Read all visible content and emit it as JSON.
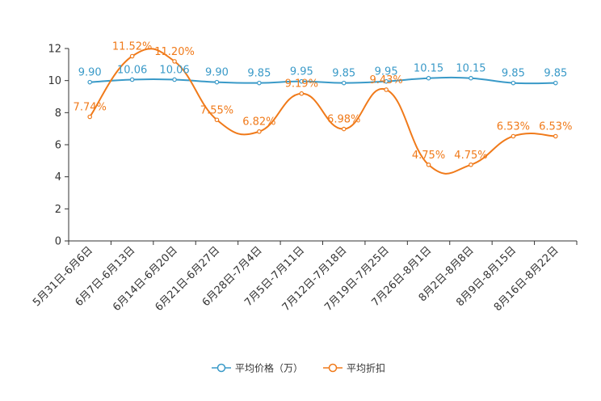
{
  "chart_data": {
    "type": "line",
    "title": "",
    "xlabel": "",
    "ylabel": "",
    "ylim": [
      0,
      12
    ],
    "yticks": [
      0,
      2,
      4,
      6,
      8,
      10,
      12
    ],
    "grid": false,
    "legend_position": "bottom-center",
    "categories": [
      "5月31日-6月6日",
      "6月7日-6月13日",
      "6月14日-6月20日",
      "6月21日-6月27日",
      "6月28日-7月4日",
      "7月5日-7月11日",
      "7月12日-7月18日",
      "7月19日-7月25日",
      "7月26日-8月1日",
      "8月2日-8月8日",
      "8月9日-8月15日",
      "8月16日-8月22日"
    ],
    "series": [
      {
        "name": "平均价格（万）",
        "color": "#3a9ac8",
        "values": [
          9.9,
          10.06,
          10.06,
          9.9,
          9.85,
          9.95,
          9.85,
          9.95,
          10.15,
          10.15,
          9.85,
          9.85
        ],
        "labels": [
          "9.90",
          "10.06",
          "10.06",
          "9.90",
          "9.85",
          "9.95",
          "9.85",
          "9.95",
          "10.15",
          "10.15",
          "9.85",
          "9.85"
        ]
      },
      {
        "name": "平均折扣",
        "color": "#f07a1a",
        "values": [
          7.74,
          11.52,
          11.2,
          7.55,
          6.82,
          9.19,
          6.98,
          9.43,
          4.75,
          4.75,
          6.53,
          6.53
        ],
        "labels": [
          "7.74%",
          "11.52%",
          "11.20%",
          "7.55%",
          "6.82%",
          "9.19%",
          "6.98%",
          "9.43%",
          "4.75%",
          "4.75%",
          "6.53%",
          "6.53%"
        ]
      }
    ]
  }
}
